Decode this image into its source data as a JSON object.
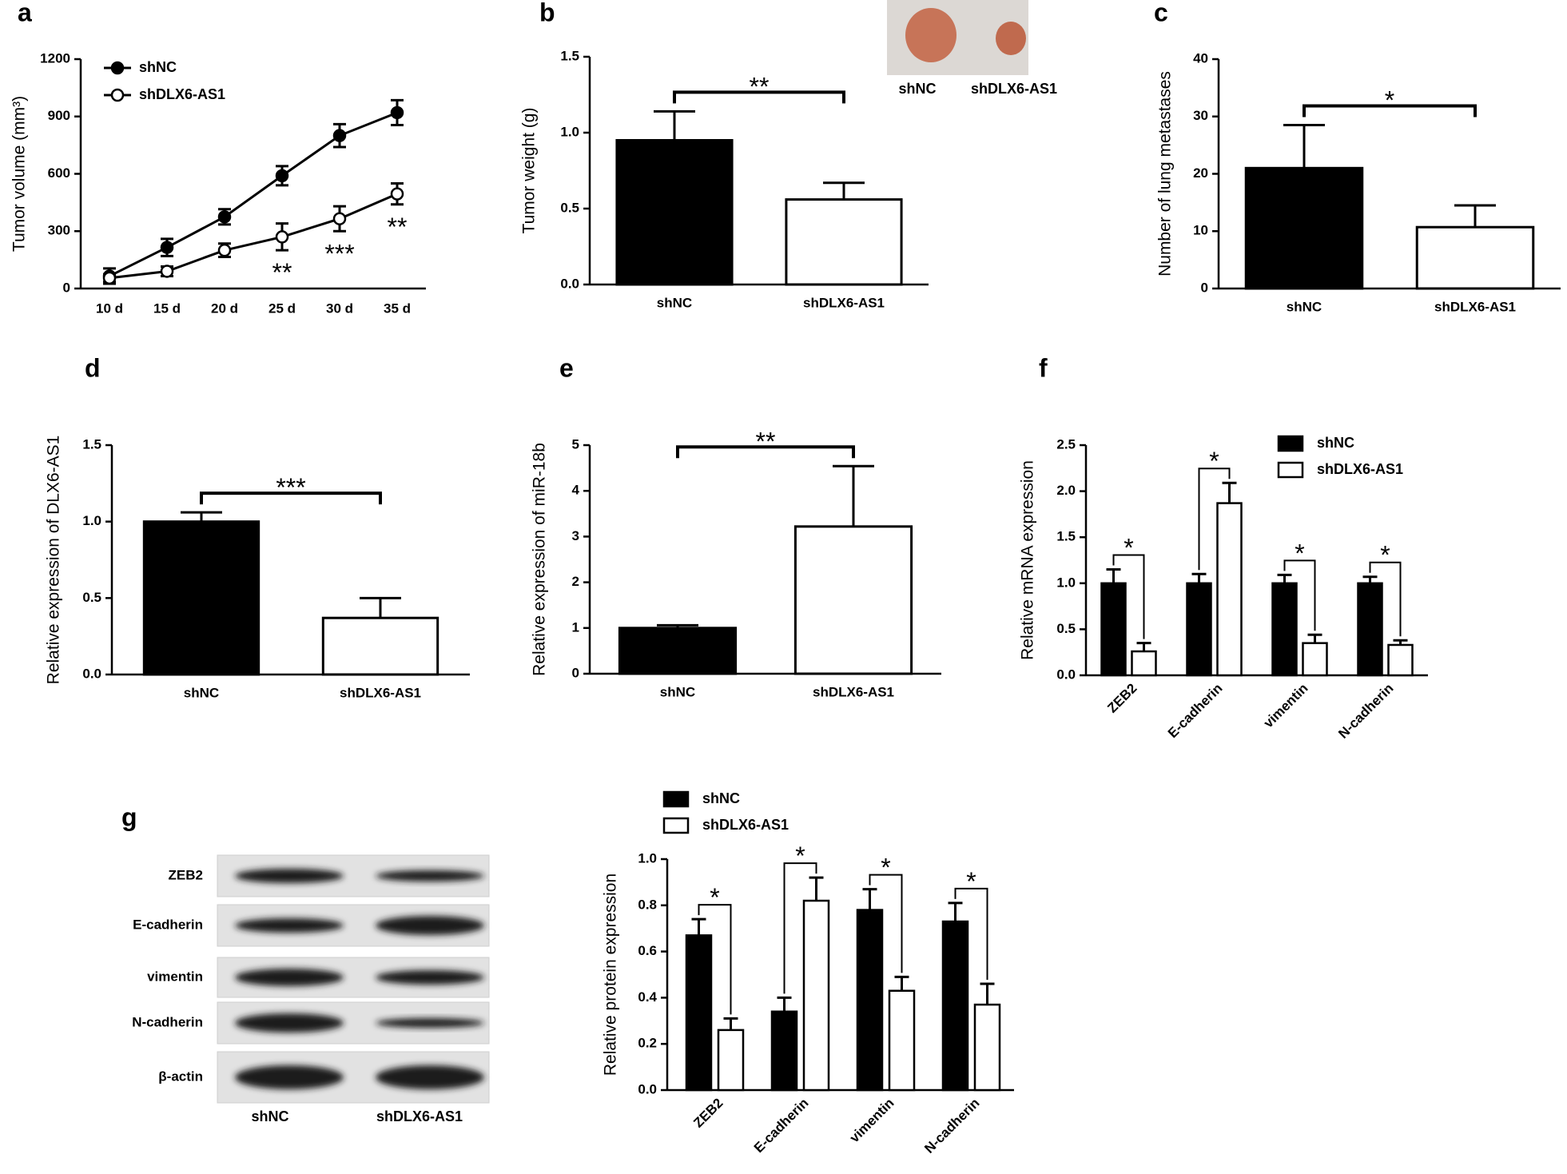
{
  "chart_data": [
    {
      "panel_label": "a",
      "type": "line",
      "ylabel": "Tumor volume (mm³)",
      "categories": [
        "10 d",
        "15 d",
        "20 d",
        "25 d",
        "30 d",
        "35 d"
      ],
      "series": [
        {
          "name": "shNC",
          "color": "#000000",
          "values": [
            65,
            215,
            375,
            590,
            800,
            920
          ],
          "errors": [
            40,
            45,
            40,
            50,
            60,
            65
          ]
        },
        {
          "name": "shDLX6-AS1",
          "color": "#ffffff",
          "values": [
            55,
            90,
            200,
            270,
            365,
            495
          ],
          "errors": [
            20,
            25,
            35,
            70,
            65,
            55
          ],
          "significance": [
            null,
            null,
            null,
            "**",
            "***",
            "**"
          ]
        }
      ],
      "ylim": [
        0,
        1200
      ],
      "yticks": [
        0,
        300,
        600,
        900,
        1200
      ],
      "legend": "top-left"
    },
    {
      "panel_label": "b",
      "type": "bar",
      "ylabel": "Tumor weight (g)",
      "categories": [
        "shNC",
        "shDLX6-AS1"
      ],
      "values": [
        0.95,
        0.56
      ],
      "errors": [
        0.19,
        0.11
      ],
      "colors": [
        "#000000",
        "#ffffff"
      ],
      "significance": "**",
      "ylim": [
        0,
        1.5
      ],
      "yticks": [
        {
          "value": 0,
          "label": "0.0"
        },
        0.5,
        {
          "value": 1,
          "label": "1.0"
        },
        1.5
      ],
      "inset_labels": [
        "shNC",
        "shDLX6-AS1"
      ]
    },
    {
      "panel_label": "c",
      "type": "bar",
      "ylabel": "Number of lung metastases",
      "categories": [
        "shNC",
        "shDLX6-AS1"
      ],
      "values": [
        21,
        10.7
      ],
      "errors": [
        7.5,
        3.8
      ],
      "colors": [
        "#000000",
        "#ffffff"
      ],
      "significance": "*",
      "ylim": [
        0,
        40
      ],
      "yticks": [
        0,
        10,
        20,
        30,
        40
      ]
    },
    {
      "panel_label": "d",
      "type": "bar",
      "ylabel": "Relative expression of DLX6-AS1",
      "categories": [
        "shNC",
        "shDLX6-AS1"
      ],
      "values": [
        1.0,
        0.37
      ],
      "errors": [
        0.06,
        0.13
      ],
      "colors": [
        "#000000",
        "#ffffff"
      ],
      "significance": "***",
      "ylim": [
        0,
        1.5
      ],
      "yticks": [
        {
          "value": 0,
          "label": "0.0"
        },
        0.5,
        {
          "value": 1,
          "label": "1.0"
        },
        1.5
      ]
    },
    {
      "panel_label": "e",
      "type": "bar",
      "ylabel": "Relative expression of miR-18b",
      "categories": [
        "shNC",
        "shDLX6-AS1"
      ],
      "values": [
        1.0,
        3.22
      ],
      "errors": [
        0.06,
        1.32
      ],
      "colors": [
        "#000000",
        "#ffffff"
      ],
      "significance": "**",
      "ylim": [
        0,
        5
      ],
      "yticks": [
        0,
        1,
        2,
        3,
        4,
        5
      ]
    },
    {
      "panel_label": "f",
      "type": "grouped_bar",
      "ylabel": "Relative mRNA expression",
      "categories": [
        "ZEB2",
        "E-cadherin",
        "vimentin",
        "N-cadherin"
      ],
      "series": [
        {
          "name": "shNC",
          "color": "#000000",
          "values": [
            1.0,
            1.0,
            1.0,
            1.0
          ],
          "errors": [
            0.15,
            0.1,
            0.09,
            0.07
          ]
        },
        {
          "name": "shDLX6-AS1",
          "color": "#ffffff",
          "values": [
            0.26,
            1.87,
            0.35,
            0.33
          ],
          "errors": [
            0.09,
            0.22,
            0.09,
            0.05
          ]
        }
      ],
      "significance": [
        "*",
        "*",
        "*",
        "*"
      ],
      "ylim": [
        0,
        2.5
      ],
      "yticks": [
        {
          "value": 0,
          "label": "0.0"
        },
        0.5,
        {
          "value": 1,
          "label": "1.0"
        },
        1.5,
        {
          "value": 2,
          "label": "2.0"
        },
        2.5
      ],
      "legend": "top-right"
    },
    {
      "panel_label": "g",
      "type": "grouped_bar",
      "ylabel": "Relative protein expression",
      "categories": [
        "ZEB2",
        "E-cadherin",
        "vimentin",
        "N-cadherin"
      ],
      "series": [
        {
          "name": "shNC",
          "color": "#000000",
          "values": [
            0.67,
            0.34,
            0.78,
            0.73
          ],
          "errors": [
            0.07,
            0.06,
            0.09,
            0.08
          ]
        },
        {
          "name": "shDLX6-AS1",
          "color": "#ffffff",
          "values": [
            0.26,
            0.82,
            0.43,
            0.37
          ],
          "errors": [
            0.05,
            0.1,
            0.06,
            0.09
          ]
        }
      ],
      "significance": [
        "*",
        "*",
        "*",
        "*"
      ],
      "ylim": [
        0,
        1
      ],
      "yticks": [
        {
          "value": 0,
          "label": "0.0"
        },
        0.2,
        0.4,
        0.6,
        0.8,
        {
          "value": 1,
          "label": "1.0"
        }
      ],
      "legend": "top-left",
      "blot": {
        "rows": [
          "ZEB2",
          "E-cadherin",
          "vimentin",
          "N-cadherin",
          "β-actin"
        ],
        "columns": [
          "shNC",
          "shDLX6-AS1"
        ]
      }
    }
  ]
}
